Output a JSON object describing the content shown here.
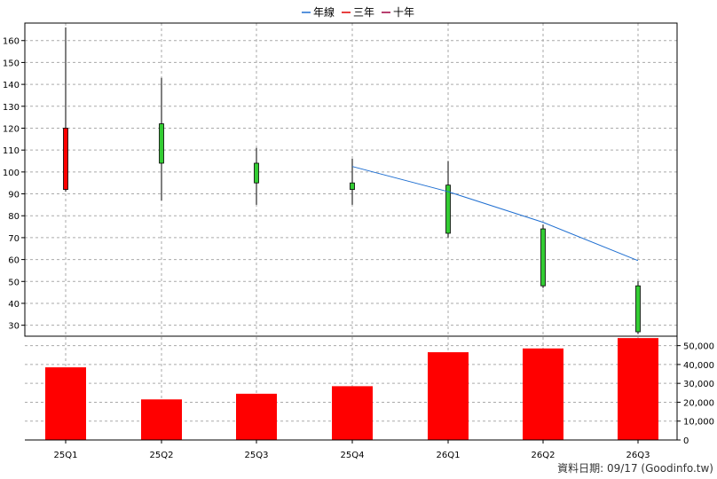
{
  "legend": [
    {
      "label": "年線",
      "color": "#1f6fd1"
    },
    {
      "label": "三年",
      "color": "#e00000"
    },
    {
      "label": "十年",
      "color": "#a00040"
    }
  ],
  "source": "資料日期: 09/17  (Goodinfo.tw)",
  "colors": {
    "up": "#ff0000",
    "down": "#33cc33",
    "volume": "#ff0000",
    "annual_line": "#1f6fd1"
  },
  "chart_data": [
    {
      "type": "candlestick",
      "categories": [
        "25Q1",
        "25Q2",
        "25Q3",
        "25Q4",
        "26Q1",
        "26Q2",
        "26Q3"
      ],
      "ohlc": [
        {
          "open": 92,
          "high": 166,
          "low": 91,
          "close": 120
        },
        {
          "open": 122,
          "high": 143,
          "low": 87,
          "close": 104
        },
        {
          "open": 104,
          "high": 111,
          "low": 85,
          "close": 95
        },
        {
          "open": 95,
          "high": 106,
          "low": 85,
          "close": 92
        },
        {
          "open": 94,
          "high": 105,
          "low": 70,
          "close": 72
        },
        {
          "open": 74,
          "high": 76,
          "low": 47,
          "close": 48
        },
        {
          "open": 48,
          "high": 50,
          "low": 26,
          "close": 27
        }
      ],
      "annual_line": [
        {
          "x": "25Q4",
          "y": 102.5
        },
        {
          "x": "26Q1",
          "y": 91
        },
        {
          "x": "26Q2",
          "y": 77
        },
        {
          "x": "26Q3",
          "y": 59.5
        }
      ],
      "yticks": [
        30,
        40,
        50,
        60,
        70,
        80,
        90,
        100,
        110,
        120,
        130,
        140,
        150,
        160
      ],
      "ylim": [
        25,
        168
      ],
      "grid": true,
      "legend_position": "top"
    },
    {
      "type": "bar",
      "categories": [
        "25Q1",
        "25Q2",
        "25Q3",
        "25Q4",
        "26Q1",
        "26Q2",
        "26Q3"
      ],
      "values": [
        38500,
        21500,
        24500,
        28500,
        46500,
        48500,
        54000
      ],
      "yticks": [
        "0",
        "10,000",
        "20,000",
        "30,000",
        "40,000",
        "50,000"
      ],
      "ylim": [
        0,
        55000
      ],
      "grid": true
    }
  ]
}
